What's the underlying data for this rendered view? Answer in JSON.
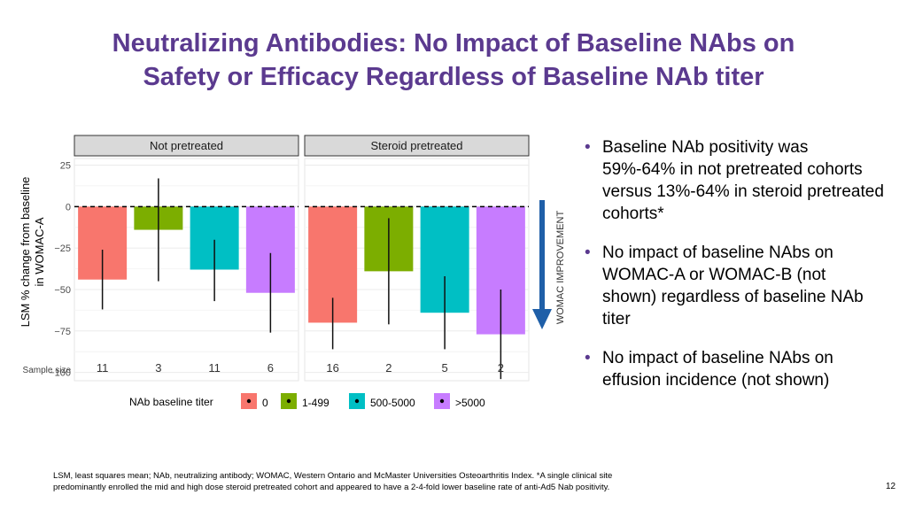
{
  "title": {
    "line1": "Neutralizing Antibodies: No Impact of Baseline NAbs on",
    "line2": "Safety or Efficacy Regardless of Baseline NAb titer"
  },
  "chart_data": {
    "type": "bar",
    "facets": [
      "Not pretreated",
      "Steroid pretreated"
    ],
    "categories": [
      "0",
      "1-499",
      "500-5000",
      ">5000"
    ],
    "series": [
      {
        "name": "Not pretreated",
        "values": [
          -44,
          -14,
          -38,
          -52
        ],
        "error_low": [
          -62,
          -45,
          -57,
          -76
        ],
        "error_high": [
          -26,
          17,
          -20,
          -28
        ],
        "sample_sizes": [
          "11",
          "3",
          "11",
          "6"
        ]
      },
      {
        "name": "Steroid pretreated",
        "values": [
          -70,
          -39,
          -64,
          -77
        ],
        "error_low": [
          -86,
          -71,
          -86,
          -104
        ],
        "error_high": [
          -55,
          -7,
          -42,
          -50
        ],
        "sample_sizes": [
          "16",
          "2",
          "5",
          "2"
        ]
      }
    ],
    "ylim": [
      -105,
      29
    ],
    "yticks": [
      25,
      0,
      -25,
      -50,
      -75,
      -100
    ],
    "ytick_labels": [
      "25",
      "0",
      "−25",
      "−50",
      "−75",
      "−100"
    ],
    "ylabel_line1": "LSM % change from baseline",
    "ylabel_line2": "in WOMAC-A",
    "sample_size_label": "Sample size",
    "legend_title": "NAb baseline titer",
    "legend_labels": [
      "0",
      "1-499",
      "500-5000",
      ">5000"
    ],
    "colors": [
      "#f8766d",
      "#7cae00",
      "#00bfc4",
      "#c77cff"
    ],
    "arrow_label": "WOMAC IMPROVEMENT",
    "arrow_color": "#1f5fa8",
    "reference_line": 0
  },
  "bullets": [
    "Baseline NAb positivity was 59%-64% in not pretreated cohorts versus 13%-64% in steroid pretreated cohorts*",
    "No impact of baseline NAbs on WOMAC-A or WOMAC-B (not shown) regardless of baseline NAb titer",
    "No impact of baseline NAbs on effusion incidence (not shown)"
  ],
  "bullet_symbol": "•",
  "footnote": {
    "line1": "LSM, least squares mean; NAb, neutralizing antibody; WOMAC, Western Ontario and McMaster Universities Osteoarthritis Index. *A single clinical site",
    "line2": "predominantly enrolled the mid and high dose steroid pretreated cohort and appeared to have a 2-4-fold lower baseline rate of anti-Ad5 Nab positivity."
  },
  "page_number": "12"
}
